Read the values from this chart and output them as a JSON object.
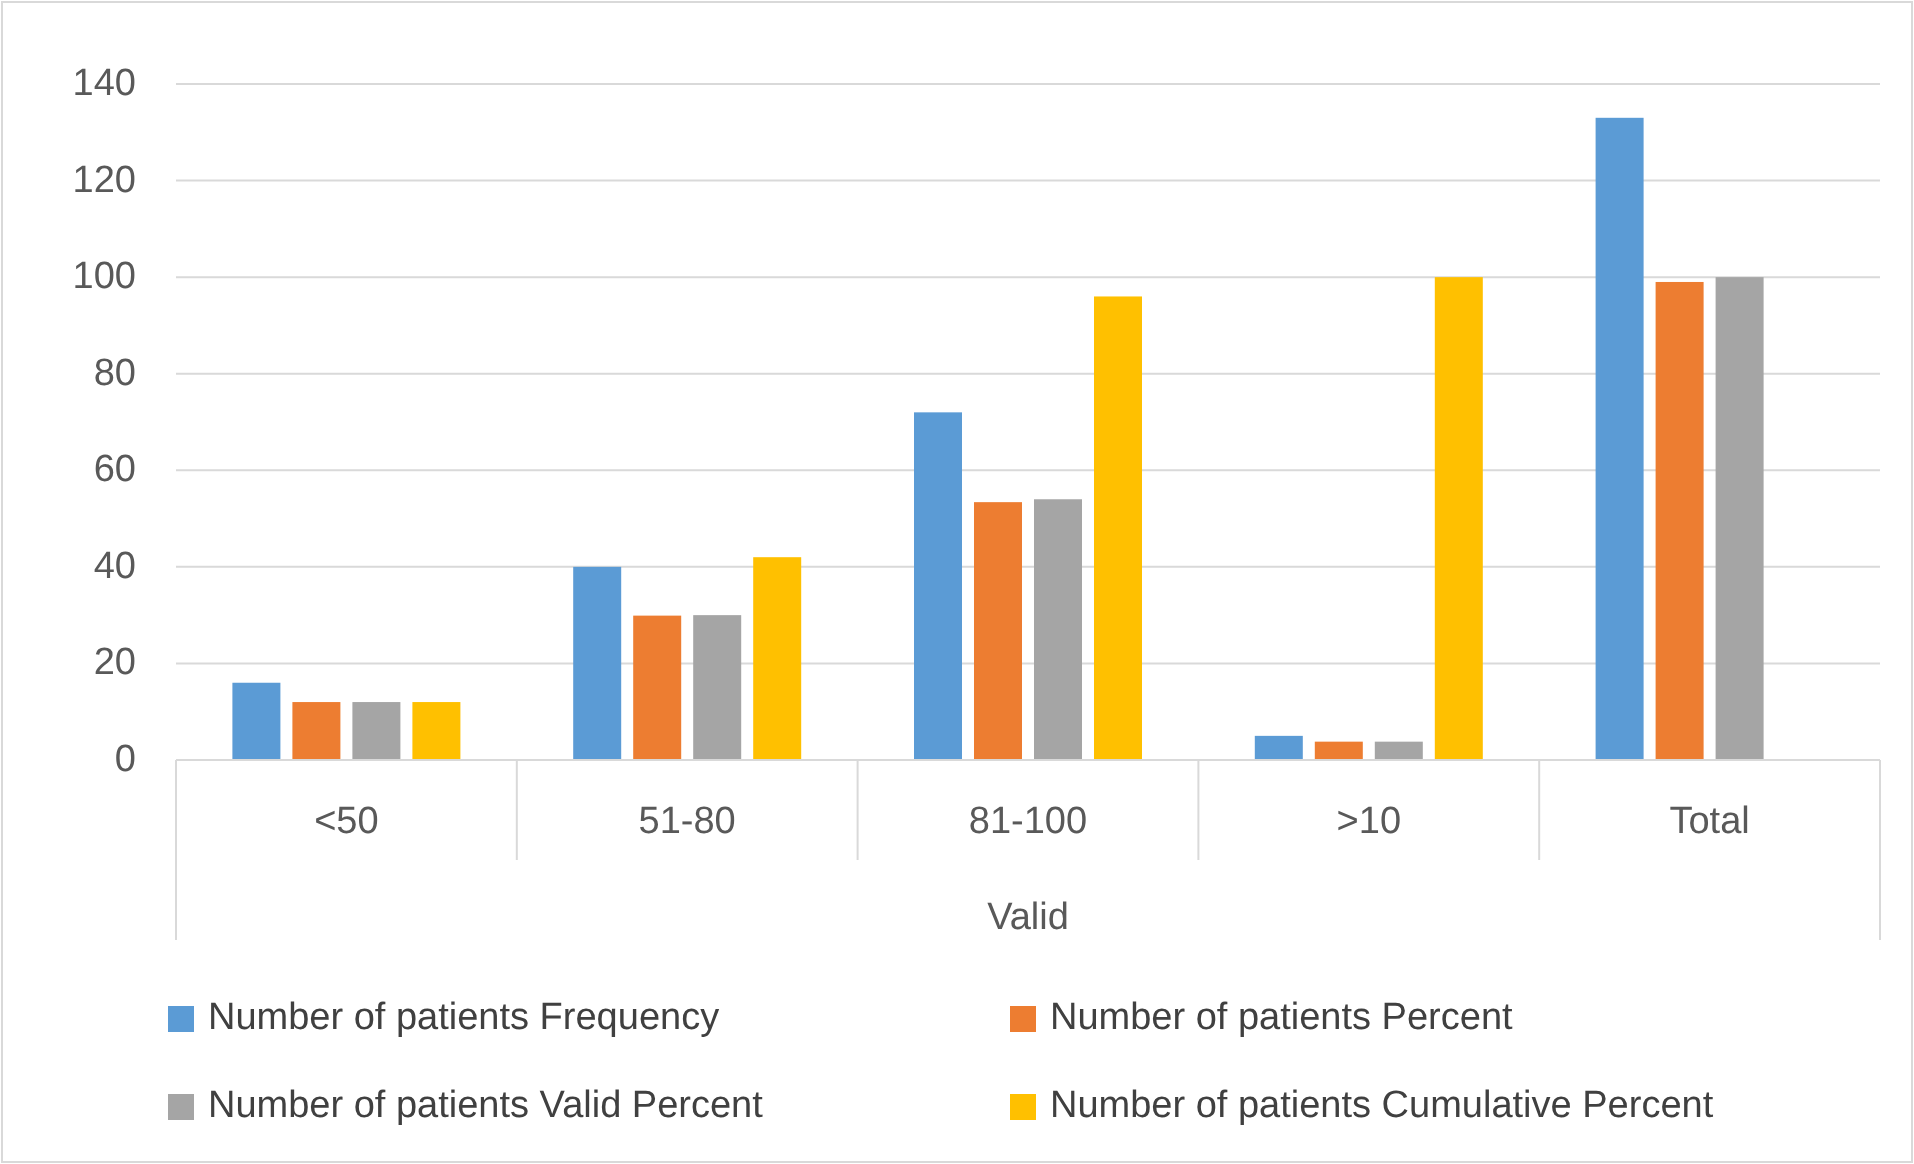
{
  "chart_data": {
    "type": "bar",
    "xlabel": "Valid",
    "categories": [
      "<50",
      "51-80",
      "81-100",
      ">10",
      "Total"
    ],
    "series": [
      {
        "name": "Number of patients Frequency",
        "color": "#5b9bd5",
        "values": [
          16,
          40,
          72,
          5,
          133
        ]
      },
      {
        "name": "Number of patients Percent",
        "color": "#ed7d31",
        "values": [
          12,
          29.9,
          53.4,
          3.8,
          99
        ]
      },
      {
        "name": "Number of patients Valid Percent",
        "color": "#a5a5a5",
        "values": [
          12,
          30,
          54,
          3.8,
          100
        ]
      },
      {
        "name": "Number of patients Cumulative Percent",
        "color": "#ffc000",
        "values": [
          12,
          42,
          96,
          100,
          null
        ]
      }
    ],
    "ylim": [
      0,
      140
    ],
    "yticks": [
      0,
      20,
      40,
      60,
      80,
      100,
      120,
      140
    ],
    "grid": "y",
    "legend": "bottom"
  }
}
